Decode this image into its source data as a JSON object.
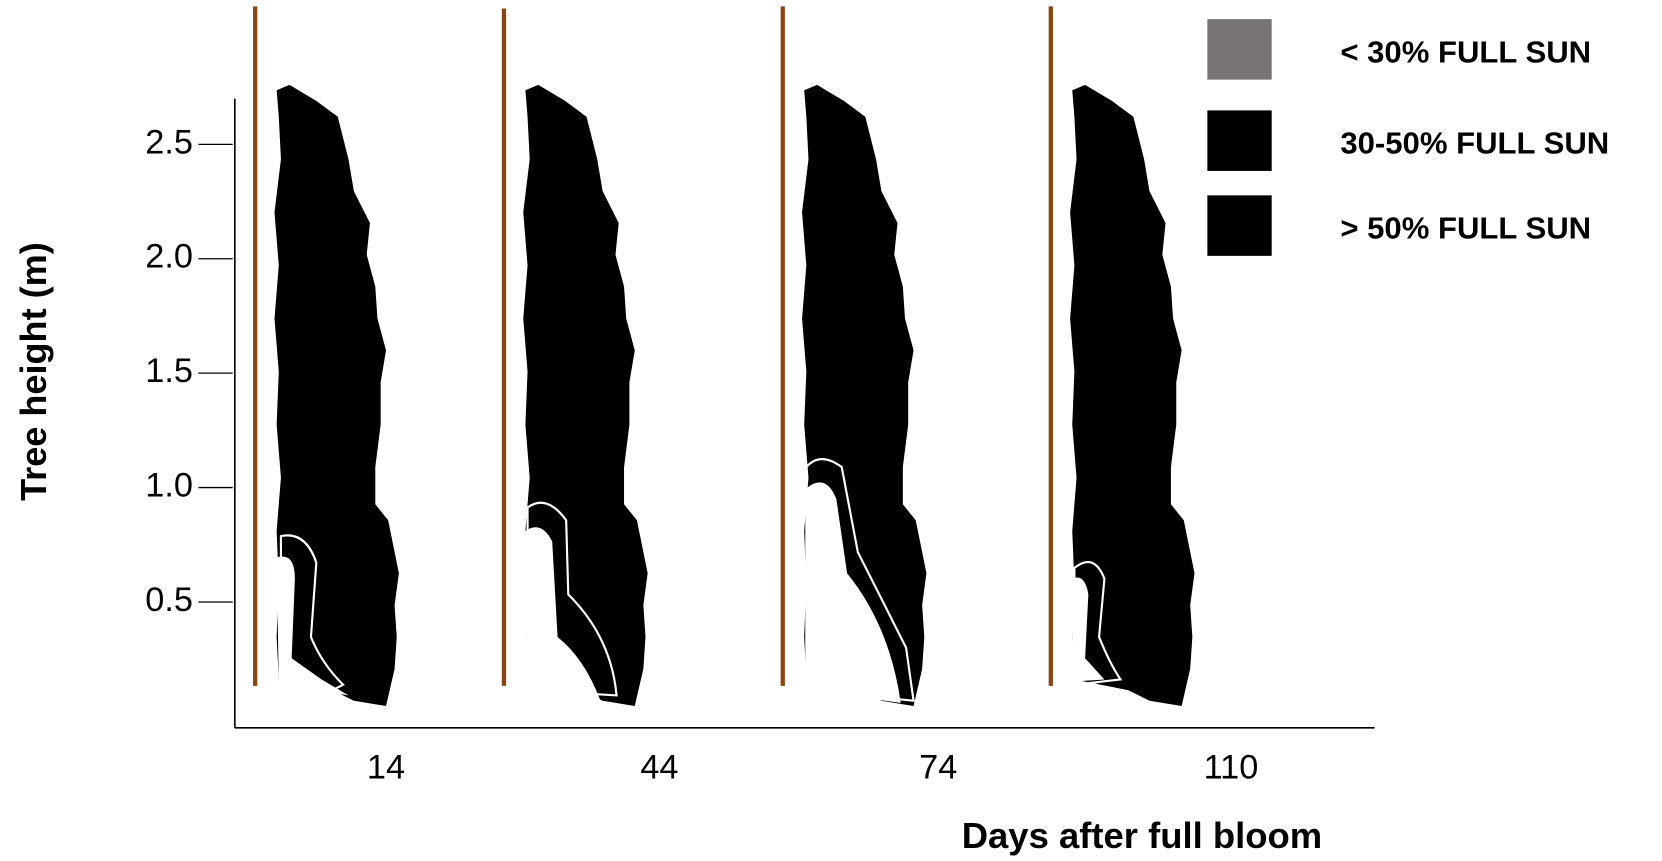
{
  "chart_data": {
    "type": "canopy-panels",
    "y_label": "Tree height (m)",
    "x_label": "Days after full bloom",
    "categories": [
      "14",
      "44",
      "74",
      "110"
    ],
    "ylim": [
      -0.05,
      2.7
    ],
    "yticks": [
      0.5,
      {
        "value": 1,
        "label": "1.0"
      },
      1.5,
      {
        "value": 2,
        "label": "2.0"
      },
      2.5
    ],
    "legend": [
      {
        "label": "< 30% FULL SUN",
        "color": "#787474"
      },
      {
        "label": "30-50% FULL SUN",
        "color": "#000000"
      },
      {
        "label": "> 50% FULL SUN",
        "color": "#000000"
      }
    ]
  }
}
